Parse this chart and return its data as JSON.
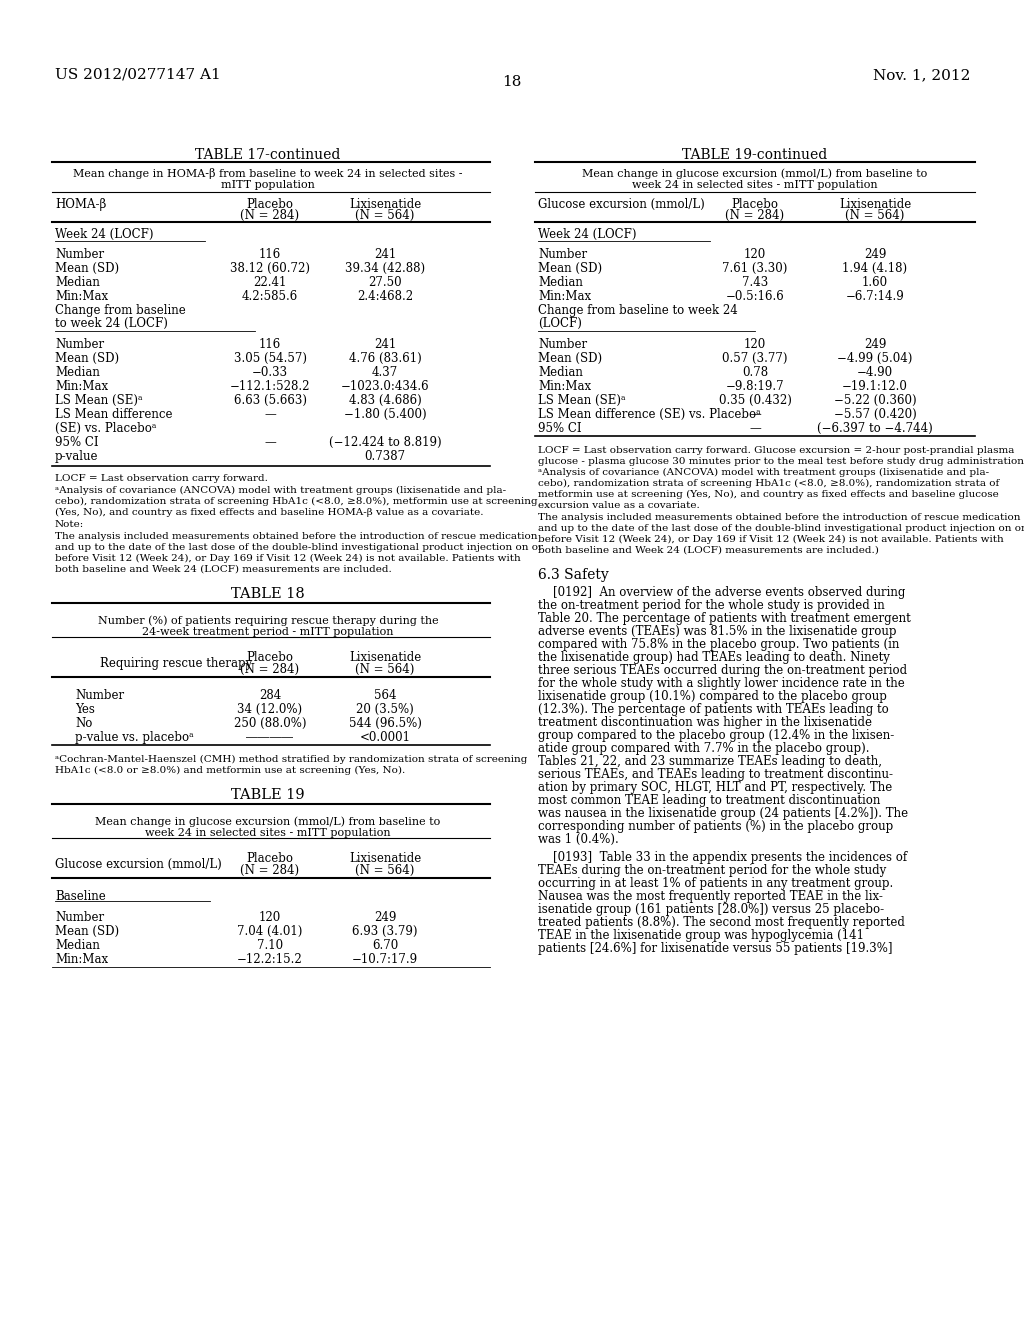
{
  "page_header_left": "US 2012/0277147 A1",
  "page_header_right": "Nov. 1, 2012",
  "page_number": "18",
  "background_color": "#ffffff",
  "text_color": "#000000"
}
